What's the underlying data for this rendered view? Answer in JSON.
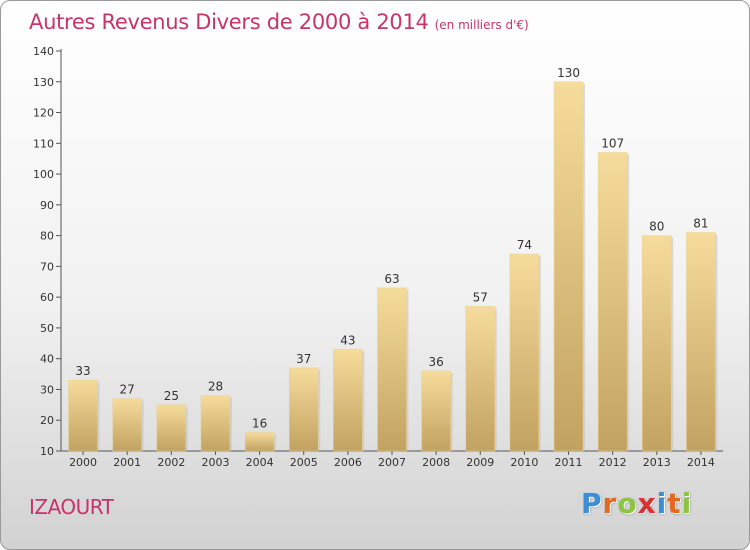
{
  "title": "Autres Revenus Divers de 2000 à 2014",
  "subtitle": "(en milliers d'€)",
  "location": "IZAOURT",
  "brand": {
    "letters": [
      "P",
      "r",
      "o",
      "x",
      "i",
      "t",
      "i"
    ],
    "colors": [
      "#3a8fd6",
      "#e8671e",
      "#8cc63f",
      "#d8312f",
      "#3a8fd6",
      "#e8671e",
      "#8cc63f"
    ]
  },
  "chart_data": {
    "type": "bar",
    "categories": [
      "2000",
      "2001",
      "2002",
      "2003",
      "2004",
      "2005",
      "2006",
      "2007",
      "2008",
      "2009",
      "2010",
      "2011",
      "2012",
      "2013",
      "2014"
    ],
    "values": [
      33,
      27,
      25,
      28,
      16,
      37,
      43,
      63,
      36,
      57,
      74,
      130,
      107,
      80,
      81
    ],
    "ylim": [
      10,
      140
    ],
    "yticks": [
      10,
      20,
      30,
      40,
      50,
      60,
      70,
      80,
      90,
      100,
      110,
      120,
      130,
      140
    ],
    "grid": false,
    "bar_color_light": "#f6dc9c",
    "bar_color_dark": "#c2a260",
    "label_color": "#333333"
  }
}
